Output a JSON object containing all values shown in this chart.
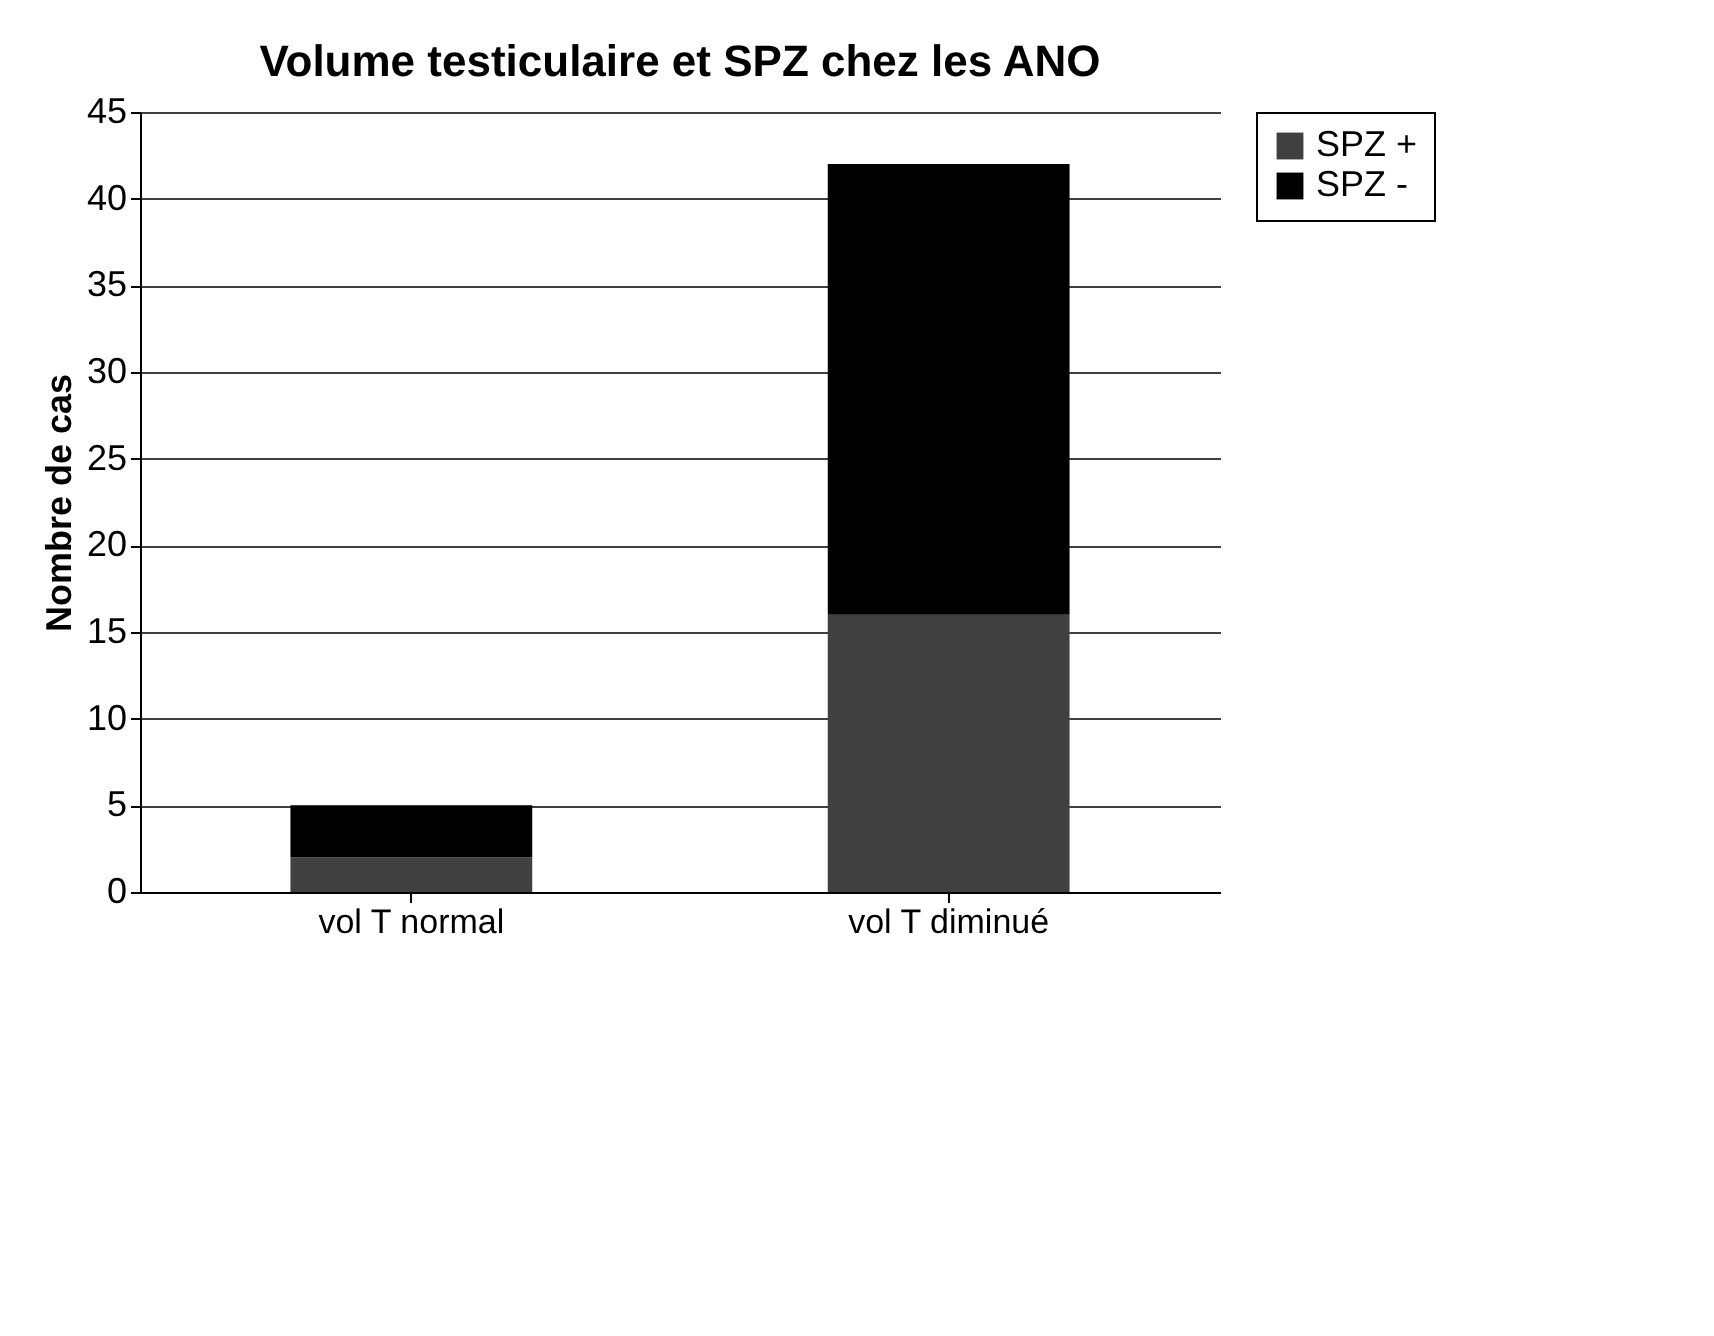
{
  "chart_data": {
    "type": "bar",
    "title": "Volume testiculaire et SPZ chez les ANO",
    "ylabel": "Nombre de cas",
    "categories": [
      "vol T normal",
      "vol T diminué"
    ],
    "series": [
      {
        "name": "SPZ +",
        "color": "#404040",
        "values": [
          2,
          16
        ]
      },
      {
        "name": "SPZ -",
        "color": "#000000",
        "values": [
          3,
          26
        ]
      }
    ],
    "stacked": true,
    "ylim": [
      0,
      45
    ],
    "yticks": [
      0,
      5,
      10,
      15,
      20,
      25,
      30,
      35,
      40,
      45
    ],
    "grid": "y",
    "legend": "right"
  }
}
